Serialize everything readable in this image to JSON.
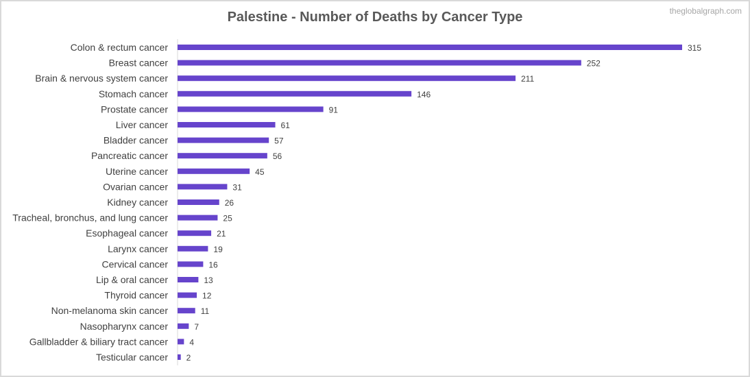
{
  "chart_data": {
    "type": "bar",
    "orientation": "horizontal",
    "title": "Palestine - Number of Deaths by Cancer Type",
    "watermark": "theglobalgraph.com",
    "bar_color": "#6644cc",
    "categories": [
      "Colon & rectum cancer",
      "Breast cancer",
      "Brain & nervous system cancer",
      "Stomach cancer",
      "Prostate cancer",
      "Liver cancer",
      "Bladder cancer",
      "Pancreatic cancer",
      "Uterine cancer",
      "Ovarian cancer",
      "Kidney cancer",
      "Tracheal, bronchus, and lung cancer",
      "Esophageal cancer",
      "Larynx cancer",
      "Cervical cancer",
      "Lip & oral cancer",
      "Thyroid cancer",
      "Non-melanoma skin cancer",
      "Nasopharynx cancer",
      "Gallbladder & biliary tract cancer",
      "Testicular cancer"
    ],
    "values": [
      315,
      252,
      211,
      146,
      91,
      61,
      57,
      56,
      45,
      31,
      26,
      25,
      21,
      19,
      16,
      13,
      12,
      11,
      7,
      4,
      2
    ],
    "xlim": [
      0,
      315
    ],
    "grid": false,
    "data_labels": true
  }
}
